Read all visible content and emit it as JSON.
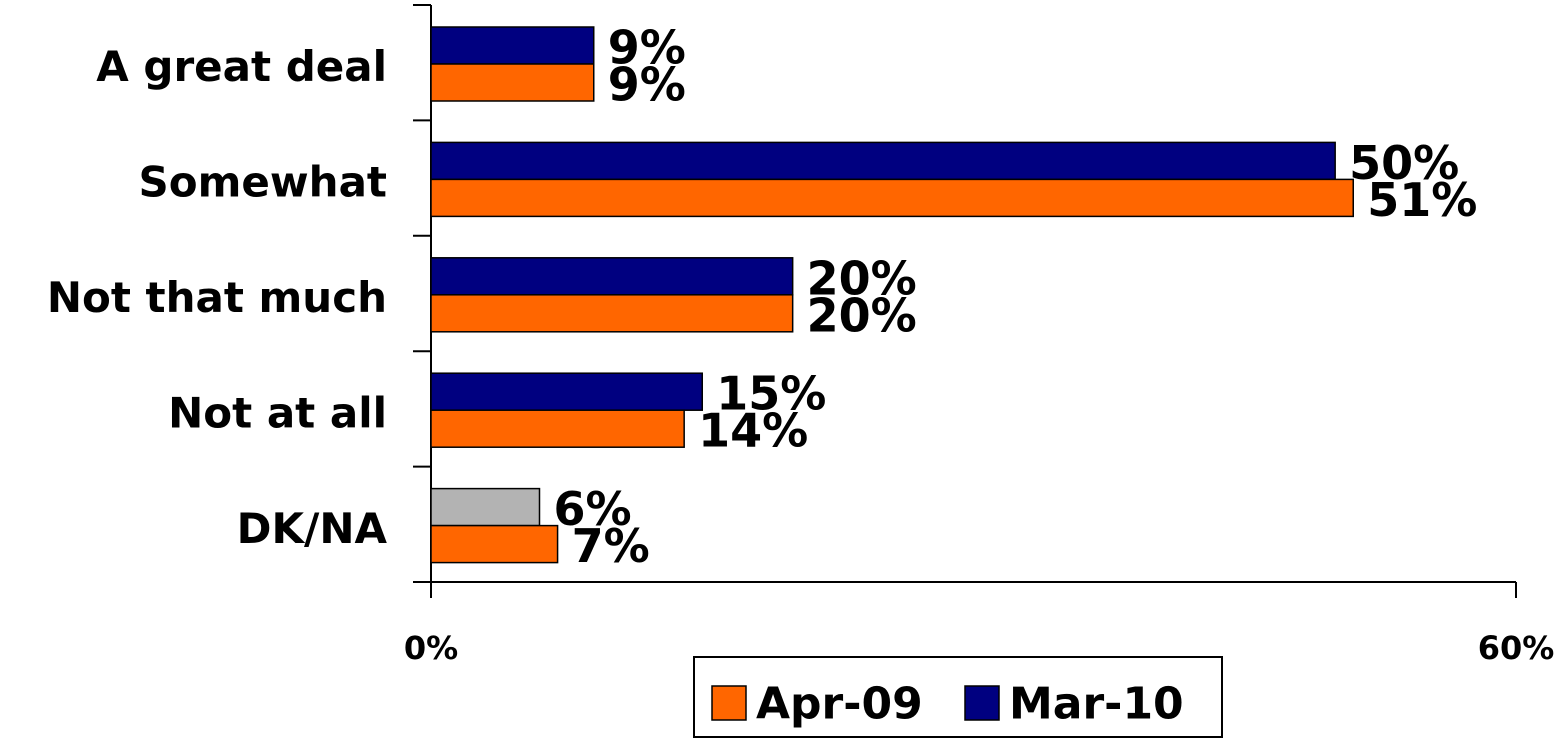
{
  "chart_data": {
    "type": "bar",
    "orientation": "horizontal",
    "categories": [
      "A great deal",
      "Somewhat",
      "Not that much",
      "Not at all",
      "DK/NA"
    ],
    "series": [
      {
        "name": "Mar-10",
        "color": "#000080",
        "colors": [
          "#000080",
          "#000080",
          "#000080",
          "#000080",
          "#b3b3b3"
        ],
        "values": [
          9,
          50,
          20,
          15,
          6
        ],
        "value_labels": [
          "9%",
          "50%",
          "20%",
          "15%",
          "6%"
        ]
      },
      {
        "name": "Apr-09",
        "color": "#ff6600",
        "values": [
          9,
          51,
          20,
          14,
          7
        ],
        "value_labels": [
          "9%",
          "51%",
          "20%",
          "14%",
          "7%"
        ]
      }
    ],
    "legend_order": [
      "Apr-09",
      "Mar-10"
    ],
    "xlim": [
      0,
      60
    ],
    "xticks": [
      {
        "value": 0,
        "label": "0%"
      },
      {
        "value": 60,
        "label": "60%"
      }
    ],
    "legend": "bottom"
  }
}
